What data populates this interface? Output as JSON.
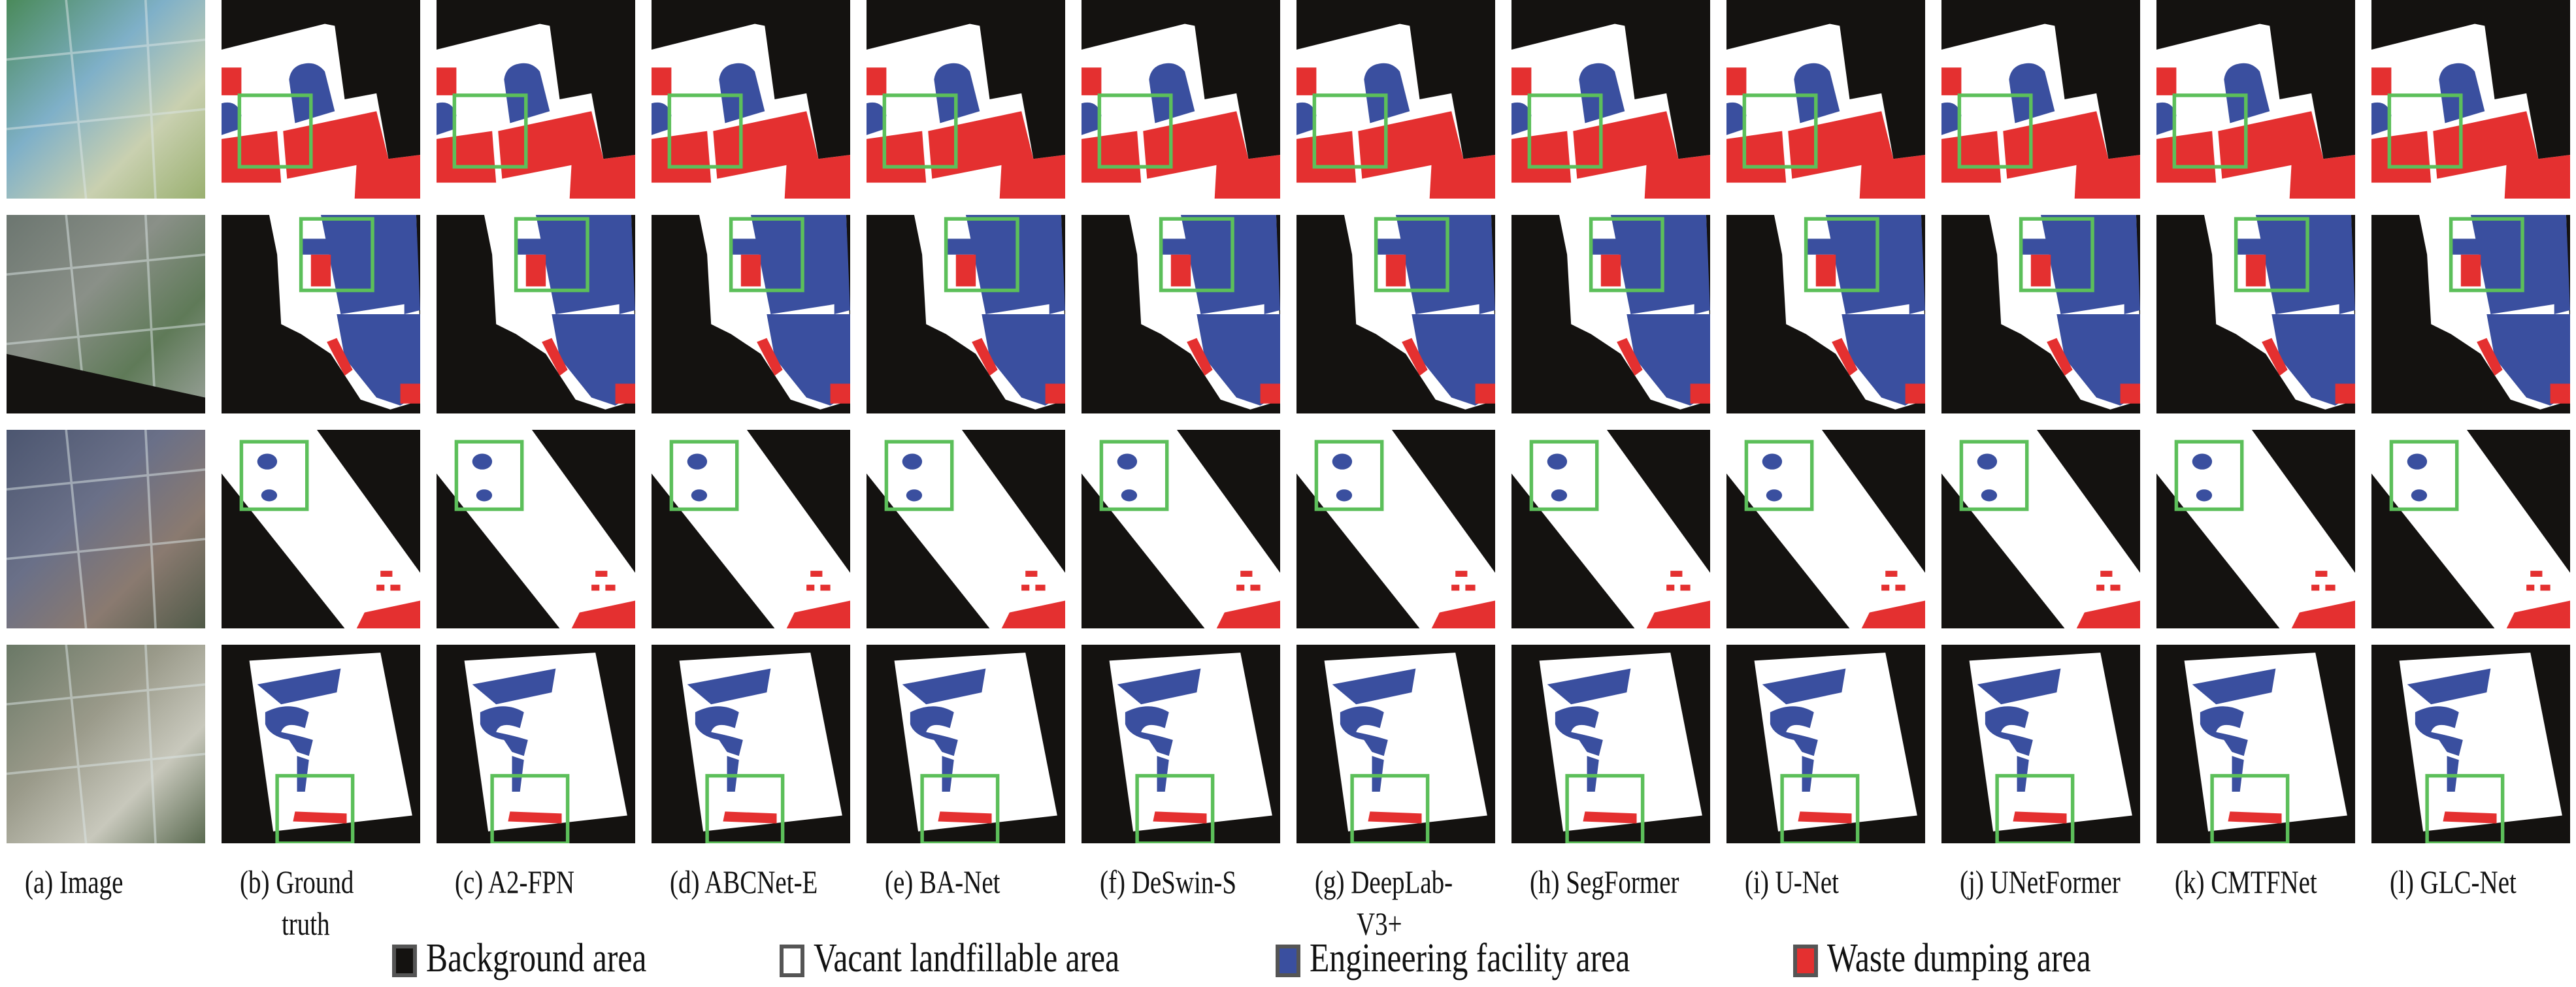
{
  "columns": [
    {
      "label": "(a) Image",
      "kind": "image"
    },
    {
      "label": "(b) Ground",
      "label2": "truth",
      "kind": "mask"
    },
    {
      "label": "(c) A2-FPN",
      "kind": "mask"
    },
    {
      "label": "(d) ABCNet-E",
      "kind": "mask"
    },
    {
      "label": "(e) BA-Net",
      "kind": "mask"
    },
    {
      "label": "(f) DeSwin-S",
      "kind": "mask"
    },
    {
      "label": "(g) DeepLab-",
      "label2": "V3+",
      "kind": "mask"
    },
    {
      "label": "(h) SegFormer",
      "kind": "mask"
    },
    {
      "label": "(i) U-Net",
      "kind": "mask"
    },
    {
      "label": "(j) UNetFormer",
      "kind": "mask"
    },
    {
      "label": "(k) CMTFNet",
      "kind": "mask"
    },
    {
      "label": "(l) GLC-Net",
      "kind": "mask"
    }
  ],
  "rows": 4,
  "legend": [
    {
      "label": "Background area",
      "color": "#141210"
    },
    {
      "label": "Vacant landfillable area",
      "color": "#ffffff"
    },
    {
      "label": "Engineering facility area",
      "color": "#3a4f9f"
    },
    {
      "label": "Waste dumping area",
      "color": "#e43030"
    }
  ],
  "highlight_box_color": "#5cbf5a"
}
